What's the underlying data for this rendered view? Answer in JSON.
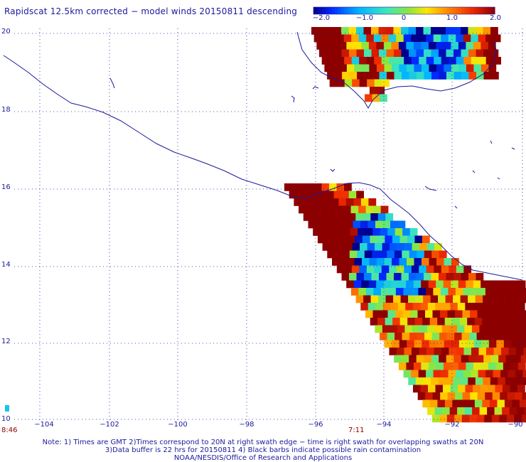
{
  "title": "Rapidscat 12.5km corrected − model winds 20150811 descending",
  "colorbar": {
    "ticks": [
      "−2.0",
      "−1.0",
      "0",
      "1.0",
      "2.0"
    ],
    "tick_values": [
      -2.0,
      -1.0,
      0,
      1.0,
      2.0
    ]
  },
  "axes": {
    "x_ticks": [
      "−104",
      "−102",
      "−100",
      "−98",
      "−96",
      "−94",
      "−92",
      "−90"
    ],
    "x_values": [
      -104,
      -102,
      -100,
      -98,
      -96,
      -94,
      -92,
      -90
    ],
    "y_ticks": [
      "20",
      "18",
      "16",
      "14",
      "12",
      "10"
    ],
    "y_values": [
      20,
      18,
      16,
      14,
      12,
      10
    ]
  },
  "swath_times": {
    "left": "8:46",
    "right": "7:11"
  },
  "notes": {
    "line1": "Note: 1) Times are GMT 2)Times correspond to 20N at right swath edge − time is right swath for overlapping swaths at 20N",
    "line2": "3)Data buffer is 22 hrs for 20150811 4) Black barbs indicate possible rain contamination",
    "line3": "NOAA/NESDIS/Office of Research and Applications"
  },
  "colors": {
    "text": "#1a1a9c",
    "coast": "#1a1a9c",
    "time_label": "#8b0000",
    "saturated_high": "#8b0000"
  }
}
